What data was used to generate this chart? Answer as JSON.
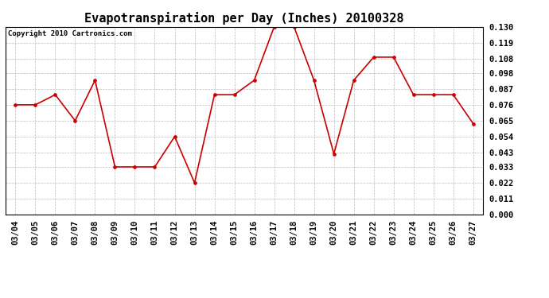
{
  "title": "Evapotranspiration per Day (Inches) 20100328",
  "copyright": "Copyright 2010 Cartronics.com",
  "dates": [
    "03/04",
    "03/05",
    "03/06",
    "03/07",
    "03/08",
    "03/09",
    "03/10",
    "03/11",
    "03/12",
    "03/13",
    "03/14",
    "03/15",
    "03/16",
    "03/17",
    "03/18",
    "03/19",
    "03/20",
    "03/21",
    "03/22",
    "03/23",
    "03/24",
    "03/25",
    "03/26",
    "03/27"
  ],
  "values": [
    0.076,
    0.076,
    0.083,
    0.065,
    0.093,
    0.033,
    0.033,
    0.033,
    0.054,
    0.022,
    0.083,
    0.083,
    0.093,
    0.13,
    0.13,
    0.093,
    0.042,
    0.093,
    0.109,
    0.109,
    0.083,
    0.083,
    0.083,
    0.063
  ],
  "line_color": "#cc0000",
  "marker_color": "#cc0000",
  "bg_color": "#ffffff",
  "grid_color": "#bbbbbb",
  "ylim": [
    0.0,
    0.13
  ],
  "yticks": [
    0.0,
    0.011,
    0.022,
    0.033,
    0.043,
    0.054,
    0.065,
    0.076,
    0.087,
    0.098,
    0.108,
    0.119,
    0.13
  ],
  "title_fontsize": 11,
  "copyright_fontsize": 6.5,
  "tick_fontsize": 7.5
}
